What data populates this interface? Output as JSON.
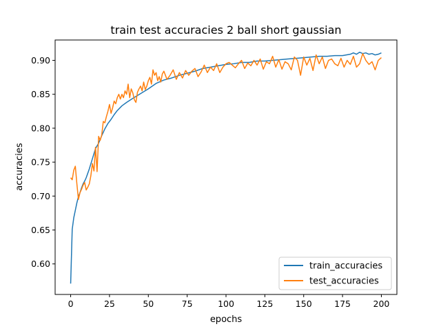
{
  "chart_data": {
    "type": "line",
    "title": "train test accuracies 2 ball short gaussian",
    "xlabel": "epochs",
    "ylabel": "accuracies",
    "xlim": [
      -10,
      210
    ],
    "ylim": [
      0.555,
      0.93
    ],
    "xticks": [
      0,
      25,
      50,
      75,
      100,
      125,
      150,
      175,
      200
    ],
    "xtick_labels": [
      "0",
      "25",
      "50",
      "75",
      "100",
      "125",
      "150",
      "175",
      "200"
    ],
    "yticks": [
      0.6,
      0.65,
      0.7,
      0.75,
      0.8,
      0.85,
      0.9
    ],
    "ytick_labels": [
      "0.60",
      "0.65",
      "0.70",
      "0.75",
      "0.80",
      "0.85",
      "0.90"
    ],
    "grid": false,
    "legend_position": "lower right",
    "series": [
      {
        "name": "train_accuracies",
        "color": "#1f77b4",
        "x": [
          0,
          1,
          2,
          3,
          4,
          5,
          6,
          7,
          8,
          9,
          10,
          12,
          14,
          16,
          18,
          20,
          22,
          24,
          26,
          28,
          30,
          33,
          36,
          40,
          45,
          50,
          55,
          60,
          65,
          70,
          75,
          80,
          85,
          90,
          95,
          100,
          105,
          110,
          115,
          120,
          125,
          130,
          135,
          140,
          145,
          150,
          155,
          160,
          165,
          170,
          175,
          180,
          182,
          184,
          186,
          188,
          190,
          192,
          194,
          196,
          198,
          200
        ],
        "y": [
          0.571,
          0.651,
          0.668,
          0.679,
          0.69,
          0.699,
          0.705,
          0.712,
          0.718,
          0.722,
          0.727,
          0.74,
          0.755,
          0.77,
          0.778,
          0.789,
          0.799,
          0.807,
          0.813,
          0.82,
          0.826,
          0.833,
          0.838,
          0.844,
          0.851,
          0.858,
          0.866,
          0.871,
          0.874,
          0.878,
          0.881,
          0.884,
          0.888,
          0.89,
          0.892,
          0.894,
          0.895,
          0.897,
          0.897,
          0.899,
          0.899,
          0.9,
          0.901,
          0.902,
          0.903,
          0.904,
          0.905,
          0.906,
          0.906,
          0.907,
          0.907,
          0.909,
          0.911,
          0.909,
          0.912,
          0.91,
          0.911,
          0.909,
          0.91,
          0.908,
          0.909,
          0.911
        ]
      },
      {
        "name": "test_accuracies",
        "color": "#ff7f0e",
        "x": [
          0,
          1,
          2,
          3,
          4,
          5,
          6,
          7,
          8,
          9,
          10,
          11,
          12,
          13,
          14,
          15,
          16,
          17,
          18,
          19,
          20,
          21,
          22,
          23,
          24,
          25,
          26,
          27,
          28,
          29,
          30,
          31,
          32,
          33,
          34,
          35,
          36,
          37,
          38,
          39,
          40,
          41,
          42,
          43,
          44,
          45,
          46,
          47,
          48,
          49,
          50,
          51,
          52,
          53,
          54,
          55,
          56,
          57,
          58,
          59,
          60,
          62,
          64,
          66,
          68,
          70,
          72,
          74,
          76,
          78,
          80,
          82,
          84,
          86,
          88,
          90,
          92,
          94,
          96,
          98,
          100,
          102,
          104,
          106,
          108,
          110,
          112,
          114,
          116,
          118,
          120,
          122,
          124,
          126,
          128,
          130,
          132,
          134,
          136,
          138,
          140,
          142,
          144,
          146,
          148,
          150,
          152,
          154,
          156,
          158,
          160,
          162,
          164,
          166,
          168,
          170,
          172,
          174,
          176,
          178,
          180,
          182,
          184,
          186,
          188,
          190,
          192,
          194,
          196,
          198,
          200
        ],
        "y": [
          0.727,
          0.724,
          0.738,
          0.744,
          0.718,
          0.695,
          0.705,
          0.71,
          0.716,
          0.72,
          0.709,
          0.713,
          0.718,
          0.73,
          0.748,
          0.737,
          0.772,
          0.736,
          0.788,
          0.782,
          0.79,
          0.81,
          0.808,
          0.817,
          0.825,
          0.835,
          0.822,
          0.83,
          0.84,
          0.836,
          0.845,
          0.85,
          0.843,
          0.85,
          0.845,
          0.855,
          0.85,
          0.865,
          0.845,
          0.858,
          0.852,
          0.842,
          0.838,
          0.853,
          0.858,
          0.862,
          0.855,
          0.868,
          0.857,
          0.862,
          0.87,
          0.875,
          0.865,
          0.886,
          0.878,
          0.882,
          0.87,
          0.876,
          0.868,
          0.88,
          0.884,
          0.872,
          0.878,
          0.886,
          0.872,
          0.882,
          0.874,
          0.885,
          0.878,
          0.884,
          0.888,
          0.876,
          0.883,
          0.893,
          0.882,
          0.89,
          0.885,
          0.895,
          0.882,
          0.89,
          0.895,
          0.897,
          0.893,
          0.889,
          0.895,
          0.9,
          0.888,
          0.896,
          0.892,
          0.9,
          0.893,
          0.902,
          0.887,
          0.898,
          0.895,
          0.906,
          0.89,
          0.901,
          0.887,
          0.898,
          0.895,
          0.886,
          0.905,
          0.9,
          0.878,
          0.905,
          0.893,
          0.903,
          0.885,
          0.908,
          0.895,
          0.905,
          0.888,
          0.9,
          0.902,
          0.895,
          0.892,
          0.903,
          0.89,
          0.9,
          0.894,
          0.906,
          0.89,
          0.895,
          0.91,
          0.9,
          0.894,
          0.898,
          0.886,
          0.9,
          0.904
        ]
      }
    ]
  }
}
